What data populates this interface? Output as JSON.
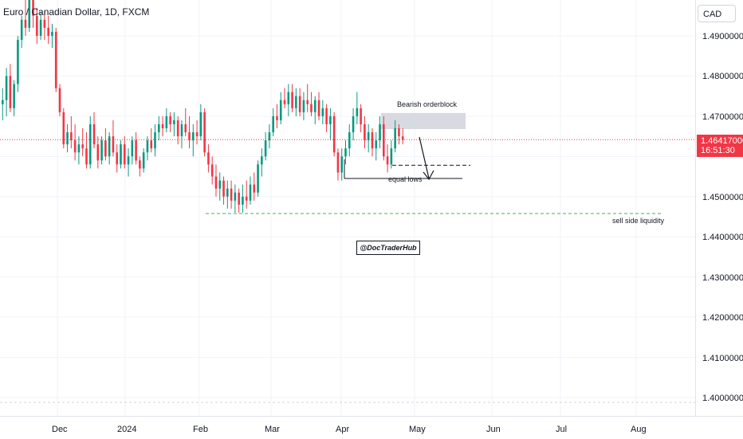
{
  "symbol": {
    "title": "Euro / Canadian Dollar, 1D, FXCM"
  },
  "price_axis": {
    "currency": "CAD",
    "ticks": [
      "1.49000000",
      "1.48000000",
      "1.47000000",
      "1.45000000",
      "1.44000000",
      "1.43000000",
      "1.42000000",
      "1.41000000",
      "1.40000000"
    ]
  },
  "time_axis": {
    "labels": [
      "Dec",
      "2024",
      "Feb",
      "Mar",
      "Apr",
      "May",
      "Jun",
      "Jul",
      "Aug"
    ]
  },
  "current_price": {
    "price": "1.46417000",
    "countdown": "16:51:30"
  },
  "annotations": {
    "orderblock": "Bearish orderblock",
    "equal_lows": "equal lows",
    "sell_side": "sell side liquidity",
    "watermark": "@DocTraderHub"
  },
  "colors": {
    "bull": "#089981",
    "bear": "#f23645",
    "grid": "#f0f3fa",
    "orderblock": "#d1d4dc",
    "sell_side_line": "#4caf50"
  },
  "chart_data": {
    "type": "candlestick",
    "series": "EURCAD daily",
    "ylim": [
      1.398,
      1.5
    ],
    "levels": {
      "last_price": 1.46417,
      "orderblock_top": 1.4708,
      "orderblock_bottom": 1.4668,
      "equal_lows": 1.4545,
      "sell_side_liquidity": 1.4458,
      "dashed_target": 1.4578
    },
    "candles": [
      [
        1.473,
        1.477,
        1.469,
        1.474
      ],
      [
        1.474,
        1.482,
        1.47,
        1.48
      ],
      [
        1.48,
        1.483,
        1.471,
        1.472
      ],
      [
        1.472,
        1.479,
        1.47,
        1.478
      ],
      [
        1.478,
        1.49,
        1.476,
        1.489
      ],
      [
        1.489,
        1.495,
        1.487,
        1.494
      ],
      [
        1.494,
        1.499,
        1.49,
        1.492
      ],
      [
        1.492,
        1.5,
        1.491,
        1.499
      ],
      [
        1.499,
        1.501,
        1.492,
        1.495
      ],
      [
        1.495,
        1.497,
        1.488,
        1.49
      ],
      [
        1.49,
        1.496,
        1.489,
        1.494
      ],
      [
        1.494,
        1.496,
        1.489,
        1.492
      ],
      [
        1.492,
        1.495,
        1.488,
        1.49
      ],
      [
        1.49,
        1.493,
        1.487,
        1.491
      ],
      [
        1.491,
        1.492,
        1.476,
        1.477
      ],
      [
        1.477,
        1.478,
        1.47,
        1.471
      ],
      [
        1.471,
        1.472,
        1.462,
        1.463
      ],
      [
        1.463,
        1.468,
        1.461,
        1.466
      ],
      [
        1.466,
        1.47,
        1.462,
        1.464
      ],
      [
        1.464,
        1.468,
        1.459,
        1.461
      ],
      [
        1.461,
        1.465,
        1.458,
        1.463
      ],
      [
        1.463,
        1.467,
        1.46,
        1.462
      ],
      [
        1.462,
        1.466,
        1.457,
        1.458
      ],
      [
        1.458,
        1.47,
        1.457,
        1.468
      ],
      [
        1.468,
        1.471,
        1.462,
        1.463
      ],
      [
        1.463,
        1.465,
        1.457,
        1.459
      ],
      [
        1.459,
        1.465,
        1.458,
        1.464
      ],
      [
        1.464,
        1.467,
        1.459,
        1.46
      ],
      [
        1.46,
        1.466,
        1.458,
        1.465
      ],
      [
        1.465,
        1.469,
        1.46,
        1.461
      ],
      [
        1.461,
        1.463,
        1.456,
        1.458
      ],
      [
        1.458,
        1.464,
        1.457,
        1.463
      ],
      [
        1.463,
        1.465,
        1.457,
        1.458
      ],
      [
        1.458,
        1.462,
        1.455,
        1.46
      ],
      [
        1.46,
        1.465,
        1.458,
        1.464
      ],
      [
        1.464,
        1.466,
        1.458,
        1.459
      ],
      [
        1.459,
        1.46,
        1.455,
        1.457
      ],
      [
        1.457,
        1.462,
        1.456,
        1.461
      ],
      [
        1.461,
        1.465,
        1.459,
        1.464
      ],
      [
        1.464,
        1.467,
        1.461,
        1.462
      ],
      [
        1.462,
        1.468,
        1.46,
        1.466
      ],
      [
        1.466,
        1.47,
        1.464,
        1.468
      ],
      [
        1.468,
        1.47,
        1.465,
        1.467
      ],
      [
        1.467,
        1.472,
        1.466,
        1.47
      ],
      [
        1.47,
        1.471,
        1.466,
        1.468
      ],
      [
        1.468,
        1.471,
        1.465,
        1.469
      ],
      [
        1.469,
        1.47,
        1.463,
        1.465
      ],
      [
        1.465,
        1.469,
        1.462,
        1.468
      ],
      [
        1.468,
        1.472,
        1.465,
        1.466
      ],
      [
        1.466,
        1.47,
        1.462,
        1.464
      ],
      [
        1.464,
        1.468,
        1.46,
        1.466
      ],
      [
        1.466,
        1.469,
        1.463,
        1.465
      ],
      [
        1.465,
        1.473,
        1.464,
        1.471
      ],
      [
        1.471,
        1.472,
        1.46,
        1.461
      ],
      [
        1.461,
        1.463,
        1.456,
        1.458
      ],
      [
        1.458,
        1.46,
        1.453,
        1.455
      ],
      [
        1.455,
        1.458,
        1.45,
        1.452
      ],
      [
        1.452,
        1.456,
        1.449,
        1.454
      ],
      [
        1.454,
        1.455,
        1.448,
        1.45
      ],
      [
        1.45,
        1.454,
        1.447,
        1.452
      ],
      [
        1.452,
        1.454,
        1.447,
        1.449
      ],
      [
        1.449,
        1.453,
        1.446,
        1.451
      ],
      [
        1.451,
        1.452,
        1.446,
        1.448
      ],
      [
        1.448,
        1.453,
        1.446,
        1.45
      ],
      [
        1.45,
        1.454,
        1.447,
        1.449
      ],
      [
        1.449,
        1.455,
        1.448,
        1.453
      ],
      [
        1.453,
        1.456,
        1.449,
        1.451
      ],
      [
        1.451,
        1.459,
        1.45,
        1.458
      ],
      [
        1.458,
        1.462,
        1.455,
        1.46
      ],
      [
        1.46,
        1.466,
        1.459,
        1.464
      ],
      [
        1.464,
        1.468,
        1.462,
        1.466
      ],
      [
        1.466,
        1.472,
        1.465,
        1.47
      ],
      [
        1.47,
        1.473,
        1.467,
        1.469
      ],
      [
        1.469,
        1.476,
        1.468,
        1.474
      ],
      [
        1.474,
        1.477,
        1.472,
        1.473
      ],
      [
        1.473,
        1.478,
        1.47,
        1.476
      ],
      [
        1.476,
        1.478,
        1.471,
        1.472
      ],
      [
        1.472,
        1.477,
        1.47,
        1.475
      ],
      [
        1.475,
        1.477,
        1.47,
        1.471
      ],
      [
        1.471,
        1.476,
        1.469,
        1.474
      ],
      [
        1.474,
        1.478,
        1.471,
        1.473
      ],
      [
        1.473,
        1.476,
        1.47,
        1.471
      ],
      [
        1.471,
        1.475,
        1.468,
        1.474
      ],
      [
        1.474,
        1.476,
        1.469,
        1.47
      ],
      [
        1.47,
        1.474,
        1.468,
        1.472
      ],
      [
        1.472,
        1.473,
        1.466,
        1.468
      ],
      [
        1.468,
        1.472,
        1.464,
        1.47
      ],
      [
        1.47,
        1.471,
        1.46,
        1.461
      ],
      [
        1.461,
        1.462,
        1.454,
        1.456
      ],
      [
        1.456,
        1.462,
        1.454,
        1.46
      ],
      [
        1.46,
        1.464,
        1.458,
        1.462
      ],
      [
        1.462,
        1.468,
        1.46,
        1.466
      ],
      [
        1.466,
        1.472,
        1.464,
        1.47
      ],
      [
        1.47,
        1.476,
        1.468,
        1.472
      ],
      [
        1.472,
        1.473,
        1.466,
        1.468
      ],
      [
        1.468,
        1.47,
        1.462,
        1.464
      ],
      [
        1.464,
        1.468,
        1.461,
        1.466
      ],
      [
        1.466,
        1.467,
        1.46,
        1.462
      ],
      [
        1.462,
        1.466,
        1.459,
        1.464
      ],
      [
        1.464,
        1.47,
        1.462,
        1.468
      ],
      [
        1.468,
        1.47,
        1.459,
        1.46
      ],
      [
        1.46,
        1.463,
        1.456,
        1.458
      ],
      [
        1.458,
        1.464,
        1.457,
        1.462
      ],
      [
        1.462,
        1.469,
        1.461,
        1.467
      ],
      [
        1.467,
        1.468,
        1.463,
        1.465
      ],
      [
        1.465,
        1.467,
        1.463,
        1.4641
      ]
    ]
  }
}
